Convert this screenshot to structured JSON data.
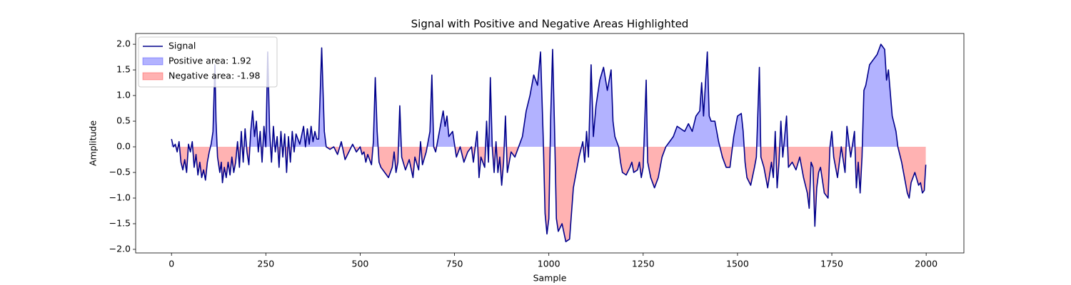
{
  "chart_data": {
    "type": "line",
    "title": "Signal with Positive and Negative Areas Highlighted",
    "xlabel": "Sample",
    "ylabel": "Amplitude",
    "x": [
      0,
      5,
      10,
      15,
      20,
      25,
      30,
      35,
      40,
      45,
      50,
      55,
      60,
      65,
      70,
      75,
      80,
      85,
      90,
      95,
      100,
      105,
      110,
      115,
      118,
      122,
      128,
      132,
      135,
      140,
      145,
      150,
      155,
      160,
      165,
      170,
      175,
      180,
      185,
      190,
      195,
      200,
      205,
      210,
      215,
      220,
      225,
      230,
      235,
      240,
      245,
      250,
      255,
      260,
      265,
      270,
      275,
      280,
      285,
      290,
      295,
      300,
      305,
      310,
      315,
      320,
      325,
      330,
      340,
      350,
      355,
      360,
      365,
      370,
      375,
      380,
      385,
      390,
      398,
      405,
      410,
      420,
      430,
      440,
      450,
      460,
      470,
      480,
      490,
      500,
      505,
      510,
      515,
      520,
      530,
      535,
      540,
      545,
      550,
      555,
      565,
      575,
      585,
      590,
      595,
      600,
      605,
      610,
      620,
      630,
      640,
      645,
      655,
      660,
      665,
      675,
      685,
      690,
      695,
      700,
      710,
      720,
      725,
      730,
      735,
      745,
      755,
      765,
      775,
      785,
      795,
      800,
      810,
      815,
      820,
      830,
      835,
      840,
      845,
      850,
      855,
      860,
      865,
      870,
      875,
      880,
      885,
      890,
      900,
      910,
      920,
      930,
      940,
      950,
      960,
      970,
      978,
      985,
      990,
      995,
      1000,
      1005,
      1010,
      1015,
      1020,
      1025,
      1035,
      1045,
      1055,
      1060,
      1065,
      1070,
      1080,
      1090,
      1095,
      1100,
      1105,
      1112,
      1118,
      1125,
      1135,
      1145,
      1155,
      1165,
      1170,
      1175,
      1180,
      1185,
      1190,
      1195,
      1205,
      1215,
      1220,
      1225,
      1235,
      1240,
      1245,
      1250,
      1258,
      1262,
      1270,
      1280,
      1290,
      1300,
      1310,
      1320,
      1330,
      1340,
      1350,
      1360,
      1370,
      1380,
      1390,
      1400,
      1405,
      1410,
      1420,
      1425,
      1430,
      1440,
      1450,
      1460,
      1470,
      1480,
      1490,
      1500,
      1510,
      1515,
      1520,
      1525,
      1535,
      1545,
      1550,
      1558,
      1562,
      1570,
      1580,
      1590,
      1595,
      1600,
      1605,
      1610,
      1615,
      1620,
      1630,
      1635,
      1645,
      1655,
      1665,
      1675,
      1685,
      1690,
      1695,
      1700,
      1705,
      1710,
      1715,
      1720,
      1730,
      1740,
      1745,
      1750,
      1755,
      1765,
      1775,
      1785,
      1790,
      1800,
      1810,
      1815,
      1820,
      1825,
      1830,
      1835,
      1840,
      1850,
      1860,
      1870,
      1880,
      1890,
      1895,
      1900,
      1910,
      1920,
      1925,
      1935,
      1945,
      1950,
      1955,
      1960,
      1970,
      1980,
      1985,
      1990,
      1995,
      1999
    ],
    "series": [
      {
        "name": "Signal",
        "color": "#00008b",
        "values": [
          0.15,
          0.0,
          0.05,
          -0.1,
          0.1,
          -0.3,
          -0.45,
          -0.25,
          -0.5,
          0.05,
          -0.1,
          0.1,
          -0.4,
          -0.15,
          -0.55,
          -0.3,
          -0.6,
          -0.45,
          -0.65,
          -0.3,
          -0.1,
          0.05,
          0.3,
          1.6,
          0.5,
          -0.2,
          -0.5,
          -0.3,
          -0.7,
          -0.4,
          -0.6,
          -0.3,
          -0.55,
          -0.2,
          -0.5,
          -0.3,
          0.1,
          -0.4,
          0.3,
          -0.3,
          0.35,
          -0.1,
          -0.35,
          0.3,
          0.7,
          0.2,
          0.5,
          -0.1,
          0.3,
          -0.3,
          0.4,
          0.0,
          1.85,
          0.3,
          -0.3,
          0.4,
          -0.1,
          0.2,
          -0.4,
          0.3,
          -0.2,
          0.25,
          -0.5,
          0.2,
          -0.3,
          0.3,
          -0.1,
          0.25,
          0.05,
          0.4,
          0.0,
          0.35,
          0.05,
          0.4,
          0.1,
          0.3,
          0.15,
          0.15,
          1.93,
          0.3,
          0.0,
          -0.05,
          0.0,
          -0.15,
          0.1,
          -0.25,
          -0.1,
          0.05,
          -0.1,
          0.0,
          -0.15,
          -0.1,
          -0.3,
          -0.15,
          -0.35,
          0.1,
          1.35,
          0.3,
          -0.3,
          -0.4,
          -0.5,
          -0.6,
          -0.4,
          -0.1,
          -0.5,
          -0.3,
          0.8,
          -0.2,
          -0.45,
          -0.25,
          -0.6,
          -0.2,
          -0.45,
          0.1,
          -0.35,
          -0.1,
          0.3,
          1.4,
          0.0,
          -0.1,
          0.3,
          0.7,
          0.4,
          0.6,
          0.2,
          0.3,
          -0.2,
          0.0,
          -0.3,
          -0.1,
          0.0,
          -0.3,
          0.3,
          -0.6,
          -0.2,
          -0.4,
          0.5,
          -0.3,
          1.35,
          0.0,
          -0.5,
          0.1,
          -0.5,
          -0.2,
          -0.75,
          -0.3,
          0.6,
          -0.5,
          -0.1,
          -0.2,
          0.0,
          0.2,
          0.7,
          1.0,
          1.4,
          1.2,
          1.85,
          0.2,
          -1.3,
          -1.7,
          -1.4,
          0.6,
          1.9,
          0.4,
          -1.4,
          -1.65,
          -1.5,
          -1.85,
          -1.8,
          -1.3,
          -0.8,
          -0.6,
          -0.2,
          0.1,
          -0.3,
          0.3,
          -0.2,
          1.6,
          0.2,
          0.8,
          1.3,
          1.55,
          1.1,
          1.5,
          0.5,
          0.2,
          0.1,
          0.0,
          -0.3,
          -0.5,
          -0.55,
          -0.4,
          -0.3,
          -0.5,
          -0.45,
          -0.3,
          -0.6,
          -0.4,
          1.3,
          -0.3,
          -0.6,
          -0.8,
          -0.6,
          -0.2,
          0.0,
          0.1,
          0.2,
          0.4,
          0.35,
          0.3,
          0.45,
          0.3,
          0.6,
          0.7,
          1.25,
          0.6,
          1.85,
          0.6,
          0.5,
          0.5,
          0.1,
          -0.2,
          -0.4,
          -0.4,
          0.2,
          0.6,
          0.65,
          0.3,
          -0.3,
          -0.6,
          -0.75,
          -0.4,
          -0.2,
          1.55,
          -0.2,
          -0.4,
          -0.8,
          -0.3,
          -0.6,
          0.3,
          -0.8,
          -0.3,
          0.5,
          -0.2,
          0.6,
          -0.4,
          -0.3,
          -0.45,
          -0.2,
          -0.6,
          -0.9,
          -1.2,
          -0.3,
          -0.4,
          -1.55,
          -0.8,
          -0.5,
          -0.4,
          -0.9,
          -1.0,
          0.0,
          0.3,
          -0.2,
          -0.6,
          0.0,
          -0.5,
          0.4,
          -0.2,
          0.3,
          -0.8,
          -0.3,
          -0.9,
          -0.2,
          1.1,
          1.2,
          1.6,
          1.7,
          1.8,
          2.0,
          1.9,
          1.3,
          1.5,
          0.6,
          0.3,
          0.0,
          -0.3,
          -0.7,
          -0.9,
          -1.0,
          -0.7,
          -0.5,
          -0.75,
          -0.7,
          -0.9,
          -0.85,
          -0.35
        ]
      }
    ],
    "fills": [
      {
        "name": "Positive area: 1.92",
        "color": "#0000ff",
        "opacity": 0.3,
        "side": "positive"
      },
      {
        "name": "Negative area: -1.98",
        "color": "#ff0000",
        "opacity": 0.3,
        "side": "negative"
      }
    ],
    "xlim": [
      -95,
      2100
    ],
    "ylim": [
      -2.07,
      2.21
    ],
    "xticks": [
      0,
      250,
      500,
      750,
      1000,
      1250,
      1500,
      1750,
      2000
    ],
    "yticks": [
      {
        "value": -2,
        "label": "−2.0"
      },
      {
        "value": -1.5,
        "label": "−1.5"
      },
      {
        "value": -1,
        "label": "−1.0"
      },
      {
        "value": -0.5,
        "label": "−0.5"
      },
      {
        "value": 0,
        "label": "0.0"
      },
      {
        "value": 0.5,
        "label": "0.5"
      },
      {
        "value": 1,
        "label": "1.0"
      },
      {
        "value": 1.5,
        "label": "1.5"
      },
      {
        "value": 2,
        "label": "2.0"
      }
    ],
    "legend": "upper left"
  }
}
